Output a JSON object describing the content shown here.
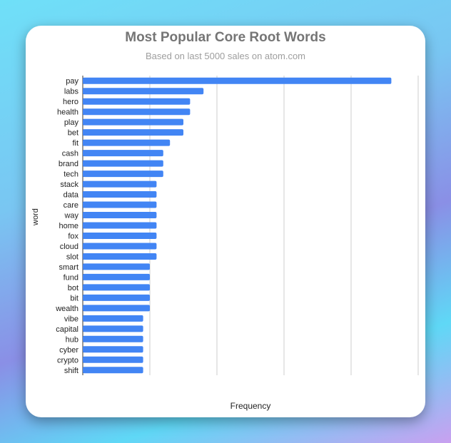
{
  "chart_data": {
    "type": "bar",
    "orientation": "horizontal",
    "title": "Most Popular Core Root Words",
    "subtitle": "Based on last 5000 sales on atom.com",
    "xlabel": "Frequency",
    "ylabel": "word",
    "categories": [
      "pay",
      "labs",
      "hero",
      "health",
      "play",
      "bet",
      "fit",
      "cash",
      "brand",
      "tech",
      "stack",
      "data",
      "care",
      "way",
      "home",
      "fox",
      "cloud",
      "slot",
      "smart",
      "fund",
      "bot",
      "bit",
      "wealth",
      "vibe",
      "capital",
      "hub",
      "cyber",
      "crypto",
      "shift"
    ],
    "values": [
      46,
      18,
      16,
      16,
      15,
      15,
      13,
      12,
      12,
      12,
      11,
      11,
      11,
      11,
      11,
      11,
      11,
      11,
      10,
      10,
      10,
      10,
      10,
      9,
      9,
      9,
      9,
      9,
      9
    ],
    "xlim": [
      0,
      50
    ],
    "grid": true,
    "bar_color": "#4285f4"
  }
}
